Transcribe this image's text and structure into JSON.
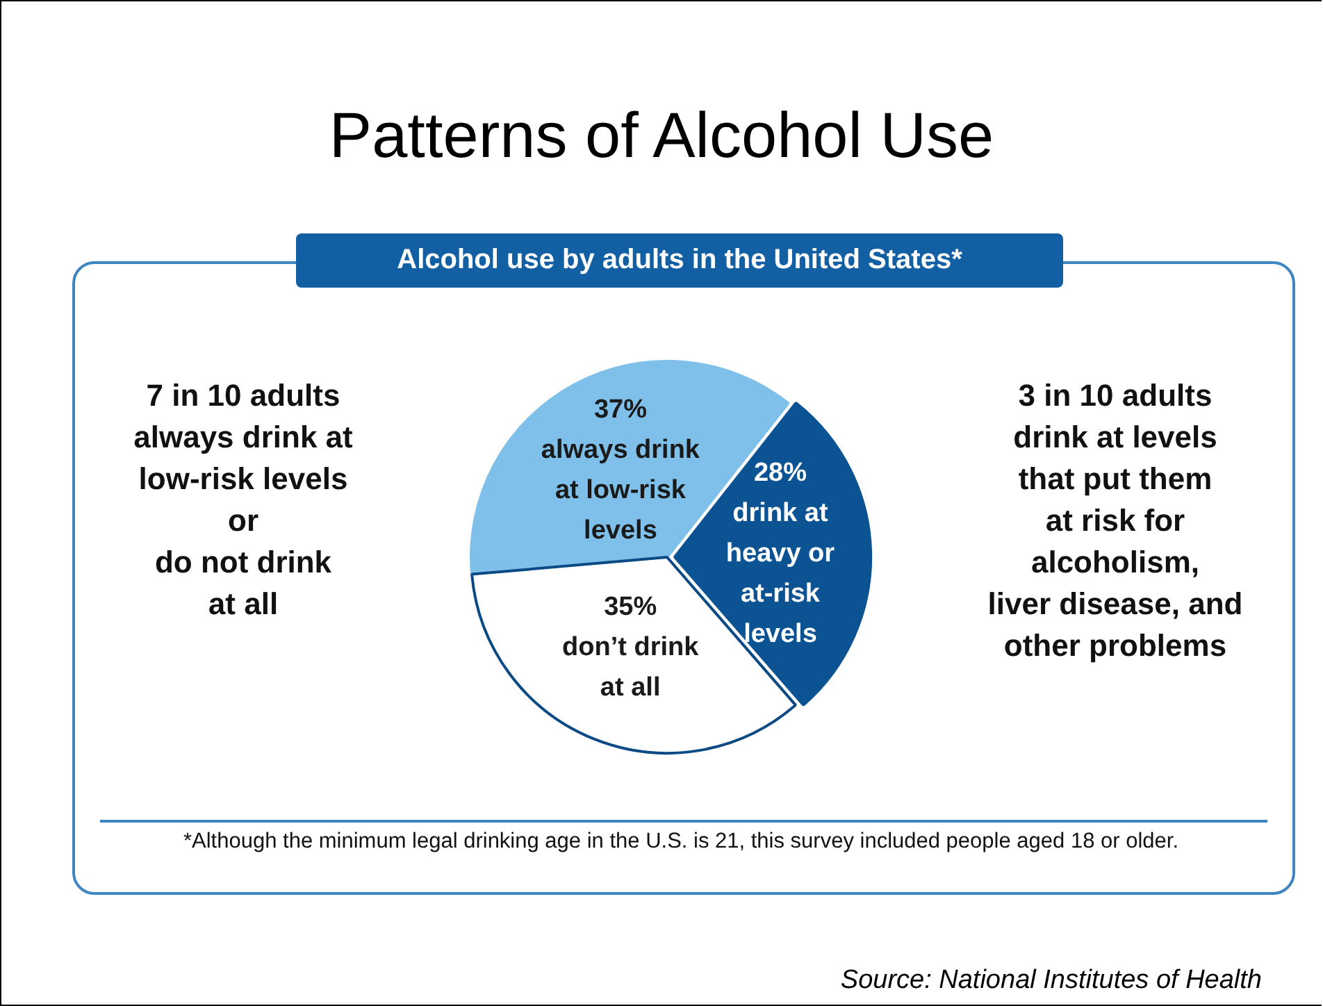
{
  "chart_data": {
    "type": "pie",
    "title": "Patterns of Alcohol Use",
    "subtitle": "Alcohol use by adults in the United States*",
    "categories": [
      "always drink\nat low-risk\nlevels",
      "drink at\nheavy or\nat-risk\nlevels",
      "don’t drink\nat all"
    ],
    "values": [
      37,
      28,
      35
    ],
    "value_labels": [
      "37%",
      "28%",
      "35%"
    ],
    "colors": [
      "#7fc0ea",
      "#0b5393",
      "#ffffff"
    ],
    "legend": false,
    "annotations": [
      "7 in 10 adults\nalways drink at\nlow-risk levels\nor\ndo not drink\nat all",
      "3 in 10 adults\ndrink at levels\nthat put them\nat risk for\nalcoholism,\nliver disease, and\nother problems",
      "*Although the minimum legal drinking age in the U.S. is 21, this survey included people aged 18 or older.",
      "Source: National Institutes of Health"
    ]
  }
}
